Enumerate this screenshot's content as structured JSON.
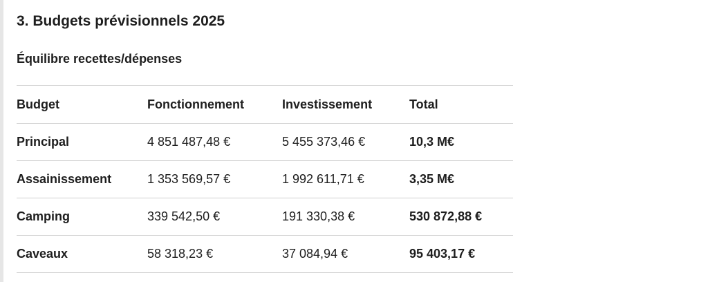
{
  "section": {
    "title": "3. Budgets prévisionnels 2025"
  },
  "subsection": {
    "title": "Équilibre recettes/dépenses"
  },
  "table": {
    "headers": [
      "Budget",
      "Fonctionnement",
      "Investissement",
      "Total"
    ],
    "rows": [
      {
        "budget": "Principal",
        "fonctionnement": "4 851 487,48 €",
        "investissement": "5 455 373,46 €",
        "total": "10,3 M€"
      },
      {
        "budget": "Assainissement",
        "fonctionnement": "1 353 569,57 €",
        "investissement": "1 992 611,71 €",
        "total": "3,35 M€"
      },
      {
        "budget": "Camping",
        "fonctionnement": "339 542,50 €",
        "investissement": "191 330,38 €",
        "total": "530 872,88 €"
      },
      {
        "budget": "Caveaux",
        "fonctionnement": "58 318,23 €",
        "investissement": "37 084,94 €",
        "total": "95 403,17 €"
      }
    ]
  }
}
